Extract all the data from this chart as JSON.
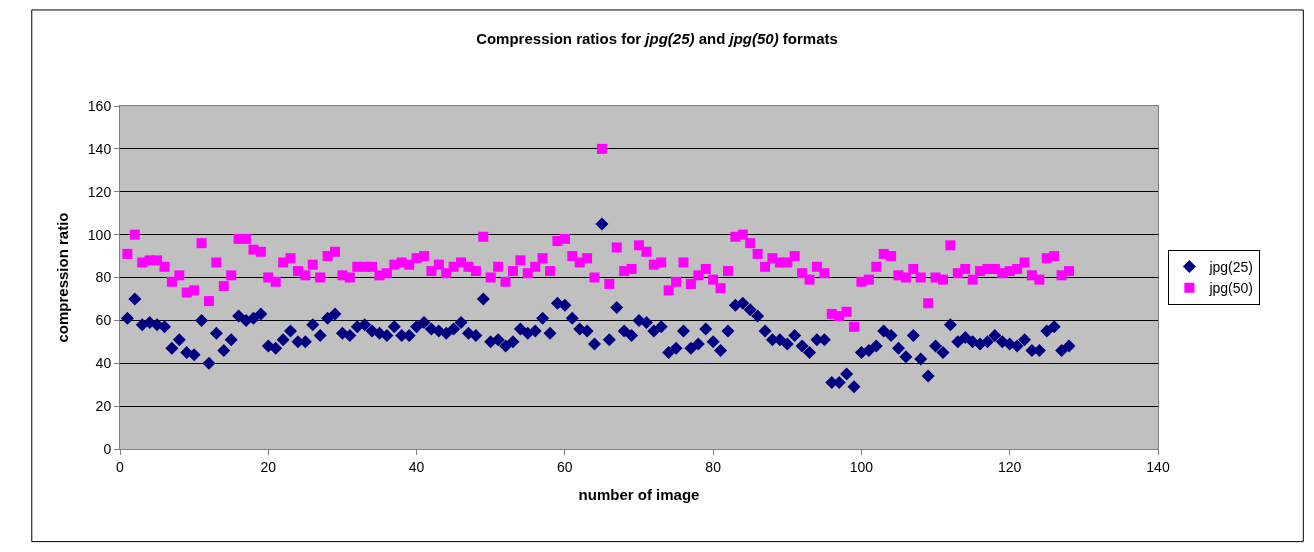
{
  "chart_data": {
    "type": "scatter",
    "title": "Compression ratios for *jpg(25)* and *jpg(50)* formats",
    "xlabel": "number of image",
    "ylabel": "compression ratio",
    "x": [
      1,
      2,
      3,
      4,
      5,
      6,
      7,
      8,
      9,
      10,
      11,
      12,
      13,
      14,
      15,
      16,
      17,
      18,
      19,
      20,
      21,
      22,
      23,
      24,
      25,
      26,
      27,
      28,
      29,
      30,
      31,
      32,
      33,
      34,
      35,
      36,
      37,
      38,
      39,
      40,
      41,
      42,
      43,
      44,
      45,
      46,
      47,
      48,
      49,
      50,
      51,
      52,
      53,
      54,
      55,
      56,
      57,
      58,
      59,
      60,
      61,
      62,
      63,
      64,
      65,
      66,
      67,
      68,
      69,
      70,
      71,
      72,
      73,
      74,
      75,
      76,
      77,
      78,
      79,
      80,
      81,
      82,
      83,
      84,
      85,
      86,
      87,
      88,
      89,
      90,
      91,
      92,
      93,
      94,
      95,
      96,
      97,
      98,
      99,
      100,
      101,
      102,
      103,
      104,
      105,
      106,
      107,
      108,
      109,
      110,
      111,
      112,
      113,
      114,
      115,
      116,
      117,
      118,
      119,
      120,
      121,
      122,
      123,
      124,
      125,
      126,
      127,
      128
    ],
    "series": [
      {
        "name": "jpg(25)",
        "color": "#000080",
        "marker": "diamond",
        "values": [
          61,
          70,
          58,
          59,
          58,
          57,
          47,
          51,
          45,
          44,
          60,
          40,
          54,
          46,
          51,
          62,
          60,
          61,
          63,
          48,
          47,
          51,
          55,
          50,
          50,
          58,
          53,
          61,
          63,
          54,
          53,
          57,
          58,
          55,
          54,
          53,
          57,
          53,
          53,
          57,
          59,
          56,
          55,
          54,
          56,
          59,
          54,
          53,
          70,
          50,
          51,
          48,
          50,
          56,
          54,
          55,
          61,
          54,
          68,
          67,
          61,
          56,
          55,
          49,
          105,
          51,
          66,
          55,
          53,
          60,
          59,
          55,
          57,
          45,
          47,
          55,
          47,
          49,
          56,
          50,
          46,
          55,
          67,
          68,
          65,
          62,
          55,
          51,
          51,
          49,
          53,
          48,
          45,
          51,
          51,
          31,
          31,
          35,
          29,
          45,
          46,
          48,
          55,
          53,
          47,
          43,
          53,
          42,
          34,
          48,
          45,
          58,
          50,
          52,
          50,
          49,
          50,
          53,
          50,
          49,
          48,
          51,
          46,
          46,
          55,
          57,
          46,
          48
        ]
      },
      {
        "name": "jpg(50)",
        "color": "#ff00ff",
        "marker": "square",
        "values": [
          91,
          100,
          87,
          88,
          88,
          85,
          78,
          81,
          73,
          74,
          96,
          69,
          87,
          76,
          81,
          98,
          98,
          93,
          92,
          80,
          78,
          87,
          89,
          83,
          81,
          86,
          80,
          90,
          92,
          81,
          80,
          85,
          85,
          85,
          81,
          82,
          86,
          87,
          86,
          89,
          90,
          83,
          86,
          82,
          85,
          87,
          85,
          83,
          99,
          80,
          85,
          78,
          83,
          88,
          82,
          85,
          89,
          83,
          97,
          98,
          90,
          87,
          89,
          80,
          140,
          77,
          94,
          83,
          84,
          95,
          92,
          86,
          87,
          74,
          78,
          87,
          77,
          81,
          84,
          79,
          75,
          83,
          99,
          100,
          96,
          91,
          85,
          89,
          87,
          87,
          90,
          82,
          79,
          85,
          82,
          63,
          62,
          64,
          57,
          78,
          79,
          85,
          91,
          90,
          81,
          80,
          84,
          80,
          68,
          80,
          79,
          95,
          82,
          84,
          79,
          83,
          84,
          84,
          82,
          83,
          84,
          87,
          81,
          79,
          89,
          90,
          81,
          83
        ]
      }
    ],
    "xlim": [
      0,
      140
    ],
    "xticks": [
      0,
      20,
      40,
      60,
      80,
      100,
      120,
      140
    ],
    "ylim": [
      0,
      160
    ],
    "yticks": [
      0,
      20,
      40,
      60,
      80,
      100,
      120,
      140,
      160
    ],
    "grid": "y",
    "legend": "right"
  }
}
